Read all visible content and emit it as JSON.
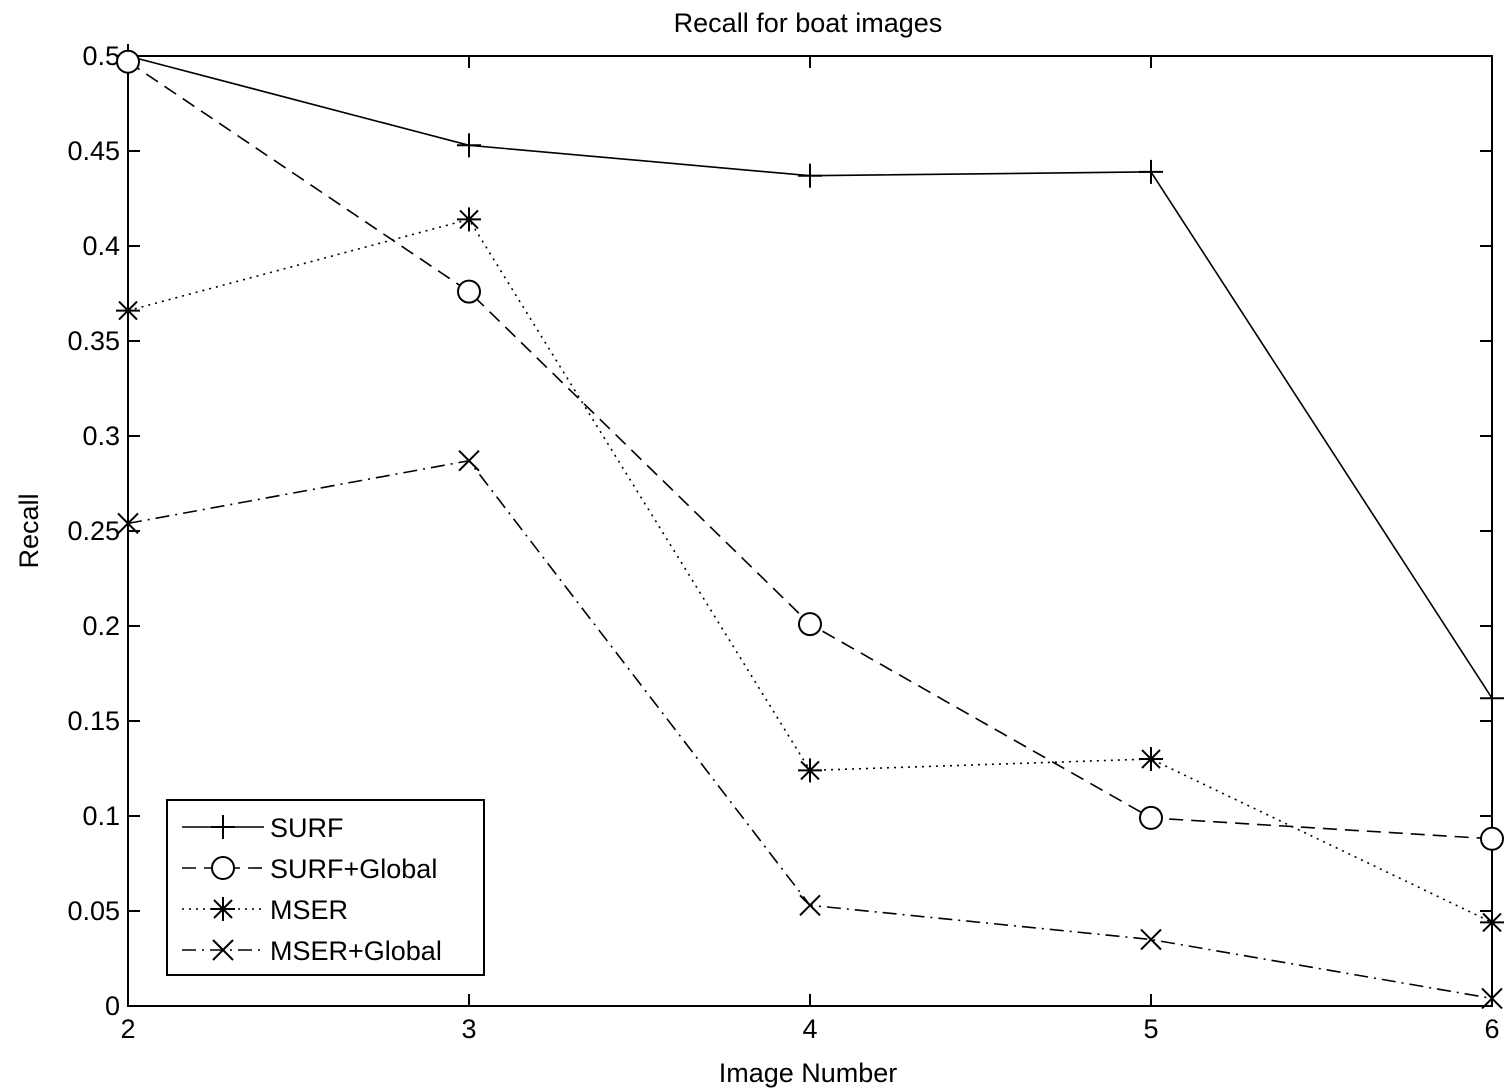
{
  "chart_data": {
    "type": "line",
    "title": "Recall for boat images",
    "xlabel": "Image Number",
    "ylabel": "Recall",
    "xlim": [
      2,
      6
    ],
    "ylim": [
      0,
      0.5
    ],
    "x": [
      2,
      3,
      4,
      5,
      6
    ],
    "xticks": [
      "2",
      "3",
      "4",
      "5",
      "6"
    ],
    "yticks": [
      "0",
      "0.05",
      "0.1",
      "0.15",
      "0.2",
      "0.25",
      "0.3",
      "0.35",
      "0.4",
      "0.45",
      "0.5"
    ],
    "grid": false,
    "legend_position": "bottom-left",
    "series": [
      {
        "name": "SURF",
        "marker": "plus",
        "line": "solid",
        "values": [
          0.5,
          0.453,
          0.437,
          0.439,
          0.162
        ]
      },
      {
        "name": "SURF+Global",
        "marker": "circle",
        "line": "dashed",
        "values": [
          0.497,
          0.376,
          0.201,
          0.099,
          0.088
        ]
      },
      {
        "name": "MSER",
        "marker": "star",
        "line": "dotted",
        "values": [
          0.366,
          0.414,
          0.124,
          0.13,
          0.044
        ]
      },
      {
        "name": "MSER+Global",
        "marker": "x",
        "line": "dashdot",
        "values": [
          0.254,
          0.287,
          0.053,
          0.035,
          0.004
        ]
      }
    ],
    "colors": {
      "line": "#000000",
      "background": "#ffffff"
    }
  }
}
